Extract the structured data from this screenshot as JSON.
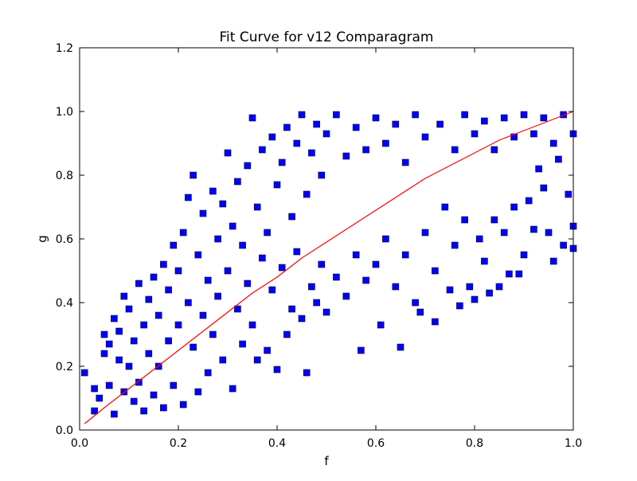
{
  "figure": {
    "background": "#ffffff"
  },
  "chart_data": {
    "type": "scatter",
    "title": "Fit Curve for v12 Comparagram",
    "xlabel": "f",
    "ylabel": "g",
    "xlim": [
      0.0,
      1.0
    ],
    "ylim": [
      0.0,
      1.2
    ],
    "x_ticks": [
      "0.0",
      "0.2",
      "0.4",
      "0.6",
      "0.8",
      "1.0"
    ],
    "y_ticks": [
      "0.0",
      "0.2",
      "0.4",
      "0.6",
      "0.8",
      "1.0",
      "1.2"
    ],
    "x_tick_values": [
      0.0,
      0.2,
      0.4,
      0.6,
      0.8,
      1.0
    ],
    "y_tick_values": [
      0.0,
      0.2,
      0.4,
      0.6,
      0.8,
      1.0,
      1.2
    ],
    "grid": false,
    "legend": "none",
    "series": [
      {
        "type": "scatter",
        "marker": "square",
        "color": "#0000ff",
        "edge_color": "#000033",
        "points": [
          [
            0.01,
            0.18
          ],
          [
            0.03,
            0.06
          ],
          [
            0.03,
            0.13
          ],
          [
            0.04,
            0.1
          ],
          [
            0.05,
            0.24
          ],
          [
            0.05,
            0.3
          ],
          [
            0.06,
            0.14
          ],
          [
            0.06,
            0.27
          ],
          [
            0.07,
            0.05
          ],
          [
            0.07,
            0.35
          ],
          [
            0.08,
            0.22
          ],
          [
            0.08,
            0.31
          ],
          [
            0.09,
            0.42
          ],
          [
            0.09,
            0.12
          ],
          [
            0.1,
            0.2
          ],
          [
            0.1,
            0.38
          ],
          [
            0.11,
            0.09
          ],
          [
            0.11,
            0.28
          ],
          [
            0.12,
            0.46
          ],
          [
            0.12,
            0.15
          ],
          [
            0.13,
            0.33
          ],
          [
            0.13,
            0.06
          ],
          [
            0.14,
            0.41
          ],
          [
            0.14,
            0.24
          ],
          [
            0.15,
            0.48
          ],
          [
            0.15,
            0.11
          ],
          [
            0.16,
            0.36
          ],
          [
            0.16,
            0.2
          ],
          [
            0.17,
            0.52
          ],
          [
            0.17,
            0.07
          ],
          [
            0.18,
            0.44
          ],
          [
            0.18,
            0.28
          ],
          [
            0.19,
            0.58
          ],
          [
            0.19,
            0.14
          ],
          [
            0.2,
            0.5
          ],
          [
            0.2,
            0.33
          ],
          [
            0.21,
            0.62
          ],
          [
            0.21,
            0.08
          ],
          [
            0.22,
            0.73
          ],
          [
            0.22,
            0.4
          ],
          [
            0.23,
            0.8
          ],
          [
            0.23,
            0.26
          ],
          [
            0.24,
            0.55
          ],
          [
            0.24,
            0.12
          ],
          [
            0.25,
            0.68
          ],
          [
            0.25,
            0.36
          ],
          [
            0.26,
            0.47
          ],
          [
            0.26,
            0.18
          ],
          [
            0.27,
            0.75
          ],
          [
            0.27,
            0.3
          ],
          [
            0.28,
            0.6
          ],
          [
            0.28,
            0.42
          ],
          [
            0.29,
            0.71
          ],
          [
            0.29,
            0.22
          ],
          [
            0.3,
            0.87
          ],
          [
            0.3,
            0.5
          ],
          [
            0.31,
            0.64
          ],
          [
            0.31,
            0.13
          ],
          [
            0.32,
            0.78
          ],
          [
            0.32,
            0.38
          ],
          [
            0.33,
            0.58
          ],
          [
            0.33,
            0.27
          ],
          [
            0.34,
            0.83
          ],
          [
            0.34,
            0.46
          ],
          [
            0.35,
            0.98
          ],
          [
            0.35,
            0.33
          ],
          [
            0.36,
            0.7
          ],
          [
            0.36,
            0.22
          ],
          [
            0.37,
            0.88
          ],
          [
            0.37,
            0.54
          ],
          [
            0.38,
            0.62
          ],
          [
            0.38,
            0.25
          ],
          [
            0.39,
            0.92
          ],
          [
            0.39,
            0.44
          ],
          [
            0.4,
            0.77
          ],
          [
            0.4,
            0.19
          ],
          [
            0.41,
            0.84
          ],
          [
            0.41,
            0.51
          ],
          [
            0.42,
            0.95
          ],
          [
            0.42,
            0.3
          ],
          [
            0.43,
            0.67
          ],
          [
            0.43,
            0.38
          ],
          [
            0.44,
            0.9
          ],
          [
            0.44,
            0.56
          ],
          [
            0.45,
            0.99
          ],
          [
            0.45,
            0.35
          ],
          [
            0.46,
            0.74
          ],
          [
            0.46,
            0.18
          ],
          [
            0.47,
            0.87
          ],
          [
            0.47,
            0.45
          ],
          [
            0.48,
            0.96
          ],
          [
            0.48,
            0.4
          ],
          [
            0.49,
            0.8
          ],
          [
            0.49,
            0.52
          ],
          [
            0.5,
            0.93
          ],
          [
            0.5,
            0.37
          ],
          [
            0.52,
            0.99
          ],
          [
            0.52,
            0.48
          ],
          [
            0.54,
            0.86
          ],
          [
            0.54,
            0.42
          ],
          [
            0.56,
            0.95
          ],
          [
            0.56,
            0.55
          ],
          [
            0.57,
            0.25
          ],
          [
            0.58,
            0.88
          ],
          [
            0.58,
            0.47
          ],
          [
            0.6,
            0.98
          ],
          [
            0.6,
            0.52
          ],
          [
            0.61,
            0.33
          ],
          [
            0.62,
            0.9
          ],
          [
            0.62,
            0.6
          ],
          [
            0.64,
            0.96
          ],
          [
            0.64,
            0.45
          ],
          [
            0.65,
            0.26
          ],
          [
            0.66,
            0.84
          ],
          [
            0.66,
            0.55
          ],
          [
            0.68,
            0.99
          ],
          [
            0.68,
            0.4
          ],
          [
            0.69,
            0.37
          ],
          [
            0.7,
            0.92
          ],
          [
            0.7,
            0.62
          ],
          [
            0.72,
            0.34
          ],
          [
            0.72,
            0.5
          ],
          [
            0.73,
            0.96
          ],
          [
            0.74,
            0.7
          ],
          [
            0.75,
            0.44
          ],
          [
            0.76,
            0.88
          ],
          [
            0.76,
            0.58
          ],
          [
            0.77,
            0.39
          ],
          [
            0.78,
            0.99
          ],
          [
            0.78,
            0.66
          ],
          [
            0.79,
            0.45
          ],
          [
            0.8,
            0.93
          ],
          [
            0.8,
            0.41
          ],
          [
            0.81,
            0.6
          ],
          [
            0.82,
            0.97
          ],
          [
            0.82,
            0.53
          ],
          [
            0.83,
            0.43
          ],
          [
            0.84,
            0.88
          ],
          [
            0.84,
            0.66
          ],
          [
            0.85,
            0.45
          ],
          [
            0.86,
            0.98
          ],
          [
            0.86,
            0.62
          ],
          [
            0.87,
            0.49
          ],
          [
            0.88,
            0.92
          ],
          [
            0.88,
            0.7
          ],
          [
            0.89,
            0.49
          ],
          [
            0.9,
            0.99
          ],
          [
            0.9,
            0.55
          ],
          [
            0.91,
            0.72
          ],
          [
            0.92,
            0.93
          ],
          [
            0.92,
            0.63
          ],
          [
            0.93,
            0.82
          ],
          [
            0.94,
            0.98
          ],
          [
            0.94,
            0.76
          ],
          [
            0.95,
            0.62
          ],
          [
            0.96,
            0.9
          ],
          [
            0.96,
            0.53
          ],
          [
            0.97,
            0.85
          ],
          [
            0.98,
            0.99
          ],
          [
            0.98,
            0.58
          ],
          [
            0.99,
            0.74
          ],
          [
            1.0,
            0.93
          ],
          [
            1.0,
            0.64
          ],
          [
            1.0,
            0.57
          ]
        ]
      },
      {
        "type": "line",
        "color": "#ff0000",
        "points": [
          [
            0.01,
            0.02
          ],
          [
            0.05,
            0.07
          ],
          [
            0.1,
            0.13
          ],
          [
            0.15,
            0.19
          ],
          [
            0.2,
            0.25
          ],
          [
            0.25,
            0.31
          ],
          [
            0.3,
            0.37
          ],
          [
            0.35,
            0.43
          ],
          [
            0.4,
            0.48
          ],
          [
            0.45,
            0.54
          ],
          [
            0.5,
            0.59
          ],
          [
            0.55,
            0.64
          ],
          [
            0.6,
            0.69
          ],
          [
            0.65,
            0.74
          ],
          [
            0.7,
            0.79
          ],
          [
            0.75,
            0.83
          ],
          [
            0.8,
            0.87
          ],
          [
            0.85,
            0.91
          ],
          [
            0.9,
            0.94
          ],
          [
            0.95,
            0.97
          ],
          [
            1.0,
            1.0
          ]
        ]
      }
    ]
  }
}
